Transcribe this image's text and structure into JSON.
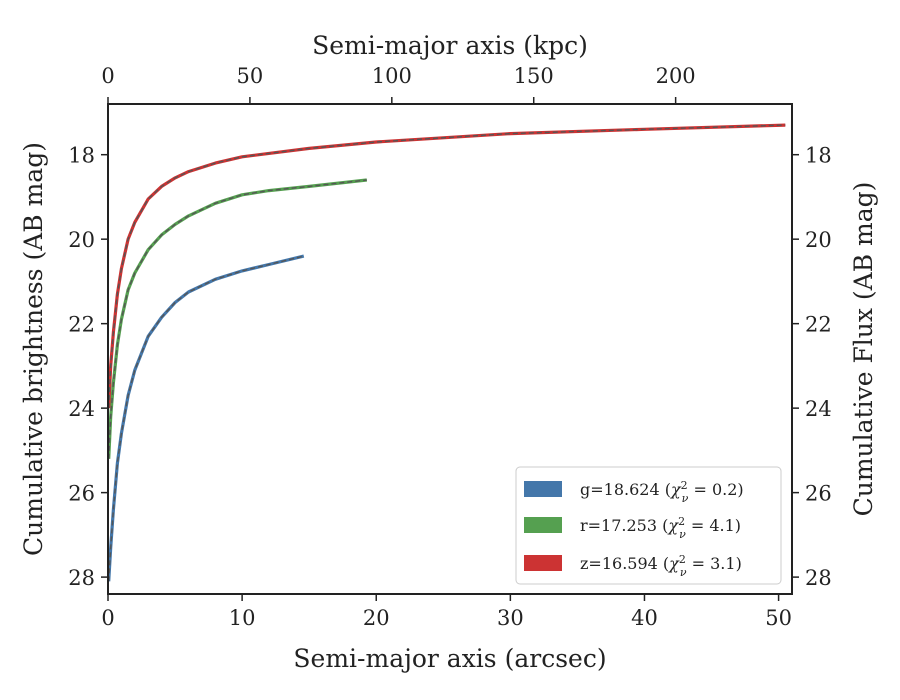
{
  "chart_data": {
    "type": "line",
    "xlabel": "Semi-major axis (arcsec)",
    "ylabel": "Cumulative brightness (AB mag)",
    "x2label": "Semi-major axis (kpc)",
    "y2label": "Cumulative Flux (AB mag)",
    "xlim": [
      0,
      51
    ],
    "ylim": [
      28.4,
      16.8
    ],
    "x2lim": [
      0,
      241
    ],
    "y_inverted": true,
    "grid": false,
    "legend_position": "lower right",
    "x_ticks": [
      "0",
      "10",
      "20",
      "30",
      "40",
      "50"
    ],
    "x2_ticks": [
      "0",
      "50",
      "100",
      "150",
      "200"
    ],
    "y_ticks": [
      "18",
      "20",
      "22",
      "24",
      "26",
      "28"
    ],
    "y2_ticks": [
      "18",
      "20",
      "22",
      "24",
      "26",
      "28"
    ],
    "series": [
      {
        "key": "g",
        "legend_prefix": "g=18.624 (",
        "chi": "0.2",
        "color": "#4477aa",
        "model_color": "#555555",
        "x": [
          0.05,
          0.2,
          0.4,
          0.7,
          1.0,
          1.5,
          2.0,
          3.0,
          4.0,
          5.0,
          6.0,
          8.0,
          10.0,
          12.0,
          14.6
        ],
        "y": [
          28.1,
          27.3,
          26.4,
          25.3,
          24.6,
          23.7,
          23.1,
          22.3,
          21.85,
          21.5,
          21.25,
          20.95,
          20.75,
          20.6,
          20.4
        ]
      },
      {
        "key": "r",
        "legend_prefix": "r=17.253 (",
        "chi": "4.1",
        "color": "#55a050",
        "model_color": "#555555",
        "x": [
          0.05,
          0.2,
          0.4,
          0.7,
          1.0,
          1.5,
          2.0,
          3.0,
          4.0,
          5.0,
          6.0,
          8.0,
          10.0,
          12.0,
          15.0,
          19.3
        ],
        "y": [
          25.2,
          24.2,
          23.4,
          22.5,
          21.9,
          21.2,
          20.8,
          20.25,
          19.9,
          19.65,
          19.45,
          19.15,
          18.95,
          18.85,
          18.75,
          18.6
        ]
      },
      {
        "key": "z",
        "legend_prefix": "z=16.594 (",
        "chi": "3.1",
        "color": "#cc3333",
        "model_color": "#555555",
        "x": [
          0.05,
          0.2,
          0.4,
          0.7,
          1.0,
          1.5,
          2.0,
          3.0,
          4.0,
          5.0,
          6.0,
          8.0,
          10.0,
          15.0,
          20.0,
          30.0,
          40.0,
          50.5
        ],
        "y": [
          24.0,
          23.0,
          22.2,
          21.3,
          20.7,
          20.0,
          19.6,
          19.05,
          18.75,
          18.55,
          18.4,
          18.2,
          18.05,
          17.85,
          17.7,
          17.5,
          17.4,
          17.3
        ]
      }
    ]
  }
}
